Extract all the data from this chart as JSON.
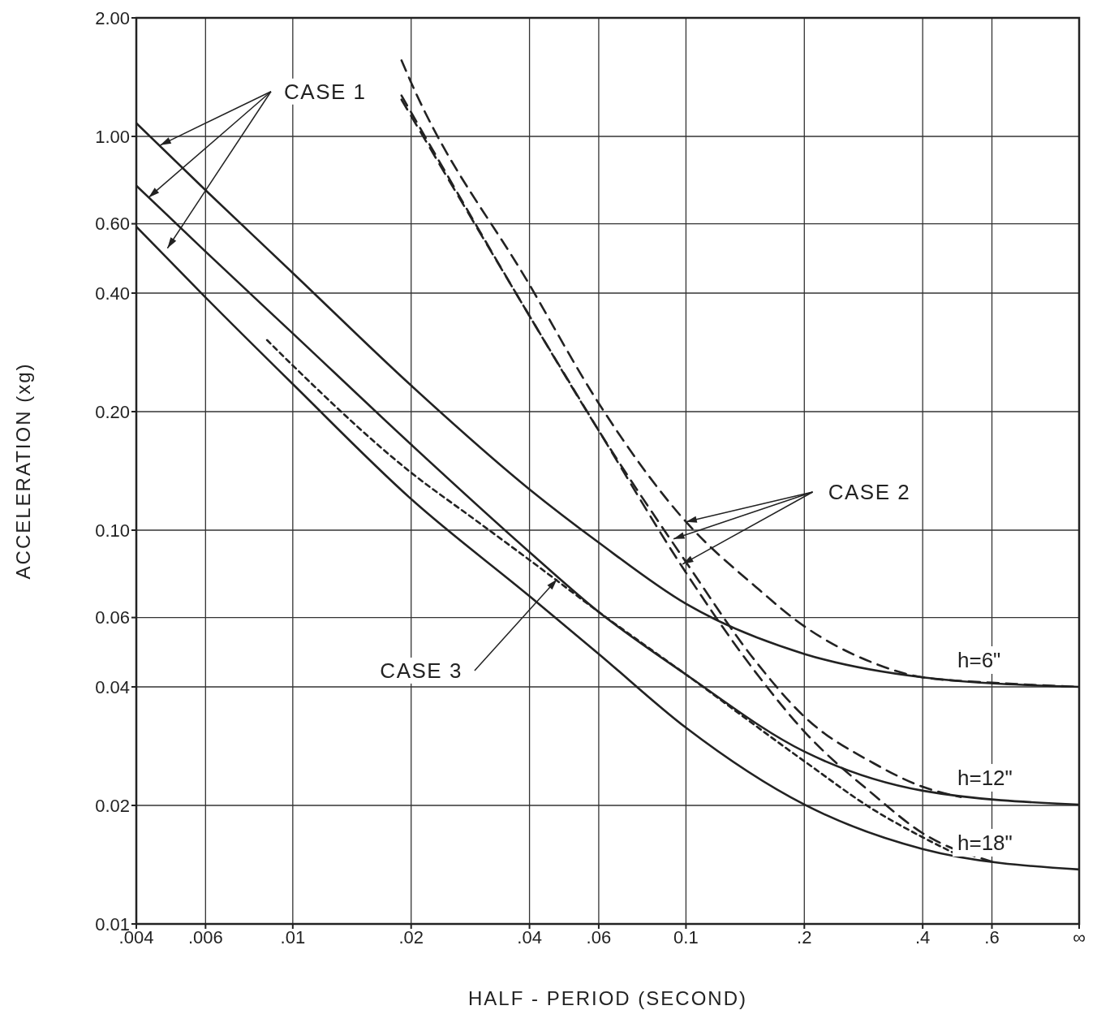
{
  "chart_data": {
    "type": "line",
    "xlabel": "HALF - PERIOD (SECOND)",
    "ylabel": "ACCELERATION  (xg)",
    "log": "xy",
    "grid": true,
    "xlim": [
      0.004,
      1
    ],
    "xticks": [
      {
        "value": 0.004,
        "label": ".004"
      },
      {
        "value": 0.006,
        "label": ".006"
      },
      {
        "value": 0.01,
        "label": ".01"
      },
      {
        "value": 0.02,
        "label": ".02"
      },
      {
        "value": 0.04,
        "label": ".04"
      },
      {
        "value": 0.06,
        "label": ".06"
      },
      {
        "value": 0.1,
        "label": "0.1"
      },
      {
        "value": 0.2,
        "label": ".2"
      },
      {
        "value": 0.4,
        "label": ".4"
      },
      {
        "value": 0.6,
        "label": ".6"
      },
      {
        "value": 1,
        "label": "∞"
      }
    ],
    "ylim": [
      0.01,
      2
    ],
    "yticks": [
      {
        "value": 0.01,
        "label": "0.01"
      },
      {
        "value": 0.02,
        "label": "0.02"
      },
      {
        "value": 0.04,
        "label": "0.04"
      },
      {
        "value": 0.06,
        "label": "0.06"
      },
      {
        "value": 0.1,
        "label": "0.10"
      },
      {
        "value": 0.2,
        "label": "0.20"
      },
      {
        "value": 0.4,
        "label": "0.40"
      },
      {
        "value": 0.6,
        "label": "0.60"
      },
      {
        "value": 1,
        "label": "1.00"
      },
      {
        "value": 2,
        "label": "2.00"
      }
    ],
    "annotations": [
      {
        "text": "CASE 1",
        "x": 0.0046,
        "y": 0.95
      },
      {
        "text": "CASE 2",
        "x": 0.1,
        "y": 0.105
      },
      {
        "text": "CASE 3",
        "x": 0.047,
        "y": 0.075
      }
    ],
    "series": [
      {
        "name": "h=6\"",
        "color": "#222222",
        "line_style": "solid",
        "x": [
          0.004,
          0.006,
          0.01,
          0.02,
          0.04,
          0.06,
          0.1,
          0.2,
          0.4,
          1
        ],
        "values": [
          1.08,
          0.73,
          0.45,
          0.233,
          0.127,
          0.093,
          0.065,
          0.0485,
          0.0423,
          0.04
        ]
      },
      {
        "name": "h=12\"",
        "color": "#222222",
        "line_style": "solid",
        "x": [
          0.004,
          0.006,
          0.01,
          0.02,
          0.04,
          0.06,
          0.1,
          0.2,
          0.4,
          1
        ],
        "values": [
          0.75,
          0.51,
          0.316,
          0.165,
          0.088,
          0.062,
          0.043,
          0.0274,
          0.0218,
          0.0201
        ]
      },
      {
        "name": "h=18\"",
        "color": "#222222",
        "line_style": "solid",
        "x": [
          0.004,
          0.006,
          0.01,
          0.02,
          0.04,
          0.06,
          0.1,
          0.2,
          0.4,
          1
        ],
        "values": [
          0.59,
          0.39,
          0.235,
          0.12,
          0.068,
          0.0485,
          0.0315,
          0.0201,
          0.0155,
          0.01375
        ]
      },
      {
        "color": "#222222",
        "line_style": "dashed",
        "x": [
          0.0189,
          0.02,
          0.04,
          0.06,
          0.1,
          0.15,
          0.2,
          0.3,
          0.4,
          0.6,
          1
        ],
        "values": [
          1.56,
          1.37,
          0.42,
          0.21,
          0.105,
          0.072,
          0.057,
          0.046,
          0.0423,
          0.041,
          0.04
        ]
      },
      {
        "color": "#222222",
        "line_style": "dashed",
        "x": [
          0.0189,
          0.04,
          0.06,
          0.1,
          0.15,
          0.2,
          0.3,
          0.4,
          0.5
        ],
        "values": [
          1.27,
          0.35,
          0.179,
          0.083,
          0.0466,
          0.0336,
          0.0256,
          0.0223,
          0.021
        ]
      },
      {
        "color": "#222222",
        "line_style": "dashed",
        "x": [
          0.0189,
          0.04,
          0.06,
          0.1,
          0.15,
          0.2,
          0.3,
          0.4,
          0.6
        ],
        "values": [
          1.24,
          0.35,
          0.179,
          0.078,
          0.0437,
          0.0308,
          0.0213,
          0.017,
          0.0144
        ]
      },
      {
        "color": "#222222",
        "line_style": "dotted",
        "x": [
          0.0086,
          0.01,
          0.02,
          0.0288,
          0.04,
          0.06,
          0.1,
          0.2,
          0.3,
          0.4,
          0.5
        ],
        "values": [
          0.304,
          0.262,
          0.14,
          0.107,
          0.084,
          0.062,
          0.043,
          0.0259,
          0.0195,
          0.0166,
          0.01485
        ]
      }
    ]
  }
}
